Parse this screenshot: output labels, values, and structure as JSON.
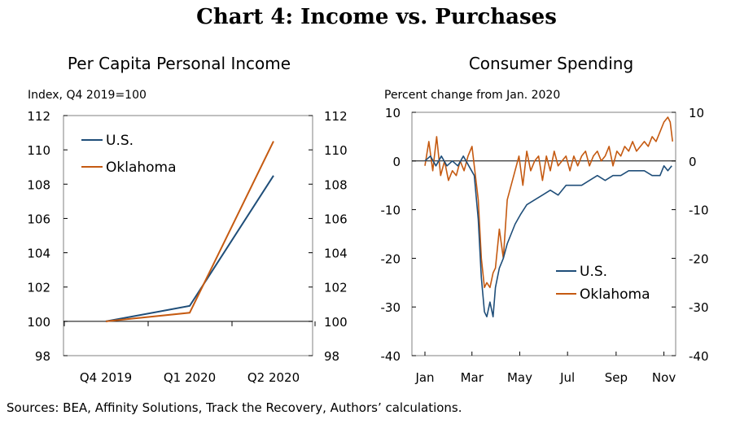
{
  "title": "Chart 4: Income vs. Purchases",
  "source": "Sources: BEA, Affinity Solutions, Track the Recovery, Authors’ calculations.",
  "colors": {
    "us": "#1f4e79",
    "oklahoma": "#c55a11"
  },
  "chart_data": [
    {
      "type": "line",
      "title": "Per Capita Personal Income",
      "unit_label": "Index, Q4 2019=100",
      "categories": [
        "Q4 2019",
        "Q1 2020",
        "Q2 2020"
      ],
      "ylim": [
        98,
        112
      ],
      "yticks": [
        "112",
        "110",
        "108",
        "106",
        "104",
        "102",
        "100",
        "98"
      ],
      "grid": false,
      "legend_position": "top-left",
      "series": [
        {
          "name": "U.S.",
          "values": [
            100,
            100.9,
            108.5
          ]
        },
        {
          "name": "Oklahoma",
          "values": [
            100,
            100.5,
            110.5
          ]
        }
      ]
    },
    {
      "type": "line",
      "title": "Consumer Spending",
      "unit_label": "Percent change from Jan. 2020",
      "x_tick_labels": [
        "Jan",
        "Mar",
        "May",
        "Jul",
        "Sep",
        "Nov"
      ],
      "x_tick_days": [
        0,
        60,
        121,
        182,
        244,
        305
      ],
      "x_range_days": [
        0,
        320
      ],
      "ylim": [
        -40,
        10
      ],
      "yticks": [
        "10",
        "0",
        "-10",
        "-20",
        "-30",
        "-40"
      ],
      "grid": false,
      "legend_position": "center-right",
      "series": [
        {
          "name": "U.S.",
          "days": [
            0,
            7,
            14,
            21,
            28,
            35,
            42,
            49,
            56,
            63,
            68,
            72,
            76,
            79,
            83,
            87,
            90,
            95,
            100,
            105,
            110,
            115,
            122,
            130,
            140,
            150,
            160,
            170,
            180,
            190,
            200,
            210,
            220,
            230,
            240,
            250,
            260,
            270,
            280,
            290,
            300,
            305,
            310,
            315
          ],
          "values": [
            0,
            1,
            -1,
            1,
            -1,
            0,
            -1,
            1,
            -1,
            -3,
            -12,
            -24,
            -31,
            -32,
            -29,
            -32,
            -26,
            -22,
            -20,
            -17,
            -15,
            -13,
            -11,
            -9,
            -8,
            -7,
            -6,
            -7,
            -5,
            -5,
            -5,
            -4,
            -3,
            -4,
            -3,
            -3,
            -2,
            -2,
            -2,
            -3,
            -3,
            -1,
            -2,
            -1
          ]
        },
        {
          "name": "Oklahoma",
          "days": [
            0,
            5,
            10,
            15,
            20,
            25,
            30,
            35,
            40,
            45,
            50,
            55,
            60,
            63,
            68,
            72,
            76,
            79,
            83,
            87,
            90,
            95,
            100,
            105,
            110,
            115,
            120,
            125,
            130,
            135,
            140,
            145,
            150,
            155,
            160,
            165,
            170,
            175,
            180,
            185,
            190,
            195,
            200,
            205,
            210,
            215,
            220,
            225,
            230,
            235,
            240,
            245,
            250,
            255,
            260,
            265,
            270,
            275,
            280,
            285,
            290,
            295,
            300,
            305,
            310,
            313,
            316
          ],
          "values": [
            -1,
            4,
            -2,
            5,
            -3,
            0,
            -4,
            -2,
            -3,
            0,
            -2,
            1,
            3,
            -1,
            -8,
            -20,
            -26,
            -25,
            -26,
            -23,
            -22,
            -14,
            -20,
            -8,
            -5,
            -2,
            1,
            -5,
            2,
            -2,
            0,
            1,
            -4,
            1,
            -2,
            2,
            -1,
            0,
            1,
            -2,
            1,
            -1,
            1,
            2,
            -1,
            1,
            2,
            0,
            1,
            3,
            -1,
            2,
            1,
            3,
            2,
            4,
            2,
            3,
            4,
            3,
            5,
            4,
            6,
            8,
            9,
            8,
            4
          ]
        }
      ]
    }
  ]
}
